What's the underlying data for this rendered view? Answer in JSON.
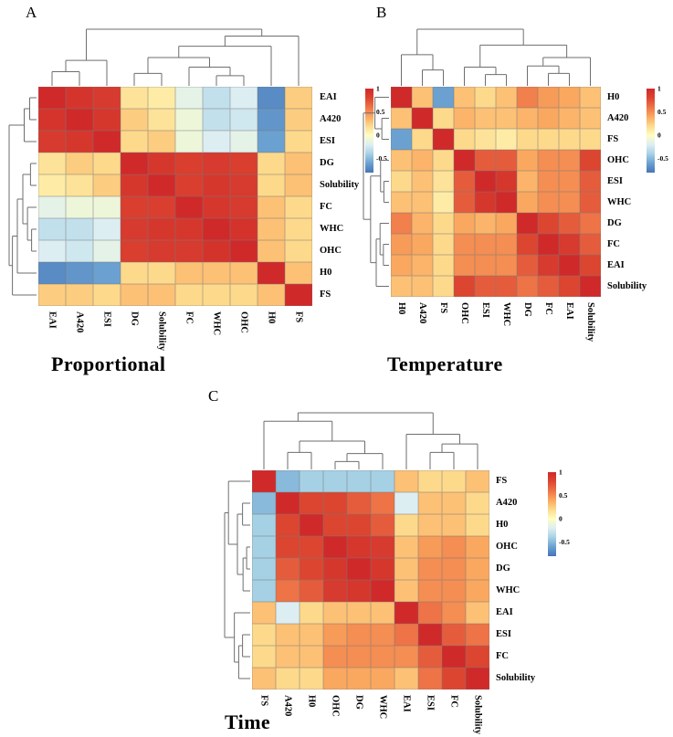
{
  "figure": {
    "type": "clustered-correlation-heatmap-figure",
    "panel_count": 3
  },
  "colormap": {
    "min": -0.8,
    "max": 1,
    "anchors": [
      [
        1.0,
        "#d0292a"
      ],
      [
        0.8,
        "#dc4530"
      ],
      [
        0.6,
        "#ee7347"
      ],
      [
        0.4,
        "#faa85f"
      ],
      [
        0.2,
        "#fdd98b"
      ],
      [
        0.0,
        "#fefec1"
      ],
      [
        -0.2,
        "#ddeef3"
      ],
      [
        -0.4,
        "#a6d1e4"
      ],
      [
        -0.6,
        "#6ba1d1"
      ],
      [
        -0.8,
        "#4674b6"
      ]
    ]
  },
  "colorbar": {
    "ticks": [
      "1",
      "0.5",
      "0",
      "-0.5"
    ],
    "tick_values": [
      1,
      0.5,
      0,
      -0.5
    ]
  },
  "chart_data": [
    {
      "type": "heatmap",
      "id": "a",
      "panel_letter": "A",
      "title": "Proportional",
      "labels": [
        "EAI",
        "A420",
        "ESI",
        "DG",
        "Solubility",
        "FC",
        "WHC",
        "OHC",
        "H0",
        "FS"
      ],
      "matrix": [
        [
          1.0,
          0.92,
          0.88,
          0.15,
          0.1,
          -0.15,
          -0.3,
          -0.2,
          -0.7,
          0.25
        ],
        [
          0.92,
          1.0,
          0.9,
          0.25,
          0.15,
          -0.1,
          -0.3,
          -0.25,
          -0.65,
          0.25
        ],
        [
          0.88,
          0.9,
          1.0,
          0.2,
          0.25,
          -0.1,
          -0.2,
          -0.15,
          -0.6,
          0.2
        ],
        [
          0.15,
          0.25,
          0.2,
          1.0,
          0.9,
          0.85,
          0.88,
          0.85,
          0.2,
          0.3
        ],
        [
          0.1,
          0.15,
          0.25,
          0.9,
          1.0,
          0.85,
          0.9,
          0.88,
          0.2,
          0.3
        ],
        [
          -0.15,
          -0.1,
          -0.1,
          0.85,
          0.85,
          1.0,
          0.9,
          0.88,
          0.3,
          0.2
        ],
        [
          -0.3,
          -0.3,
          -0.2,
          0.88,
          0.9,
          0.9,
          1.0,
          0.93,
          0.3,
          0.2
        ],
        [
          -0.2,
          -0.25,
          -0.15,
          0.85,
          0.88,
          0.88,
          0.93,
          1.0,
          0.3,
          0.2
        ],
        [
          -0.7,
          -0.65,
          -0.6,
          0.2,
          0.2,
          0.3,
          0.3,
          0.3,
          1.0,
          0.3
        ],
        [
          0.25,
          0.25,
          0.2,
          0.3,
          0.3,
          0.2,
          0.2,
          0.2,
          0.3,
          1.0
        ]
      ],
      "tree": {
        "h": 1.0,
        "c": [
          {
            "h": 0.45,
            "c": [
              {
                "h": 0.25,
                "c": [
                  0,
                  1
                ]
              },
              2
            ]
          },
          {
            "h": 0.88,
            "c": [
              {
                "h": 0.7,
                "c": [
                  {
                    "h": 0.5,
                    "c": [
                      {
                        "h": 0.22,
                        "c": [
                          3,
                          4
                        ]
                      },
                      {
                        "h": 0.33,
                        "c": [
                          5,
                          {
                            "h": 0.18,
                            "c": [
                              6,
                              7
                            ]
                          }
                        ]
                      }
                    ]
                  },
                  8
                ]
              },
              9
            ]
          }
        ]
      }
    },
    {
      "type": "heatmap",
      "id": "b",
      "panel_letter": "B",
      "title": "Temperature",
      "labels": [
        "H0",
        "A420",
        "FS",
        "OHC",
        "ESI",
        "WHC",
        "DG",
        "FC",
        "EAI",
        "Solubility"
      ],
      "matrix": [
        [
          1.0,
          0.3,
          -0.6,
          0.3,
          0.2,
          0.3,
          0.55,
          0.45,
          0.4,
          0.3
        ],
        [
          0.3,
          1.0,
          0.2,
          0.35,
          0.3,
          0.3,
          0.35,
          0.4,
          0.35,
          0.3
        ],
        [
          -0.6,
          0.2,
          1.0,
          0.2,
          0.15,
          0.1,
          0.2,
          0.2,
          0.2,
          0.2
        ],
        [
          0.3,
          0.35,
          0.2,
          1.0,
          0.7,
          0.7,
          0.4,
          0.5,
          0.5,
          0.8
        ],
        [
          0.2,
          0.3,
          0.15,
          0.7,
          1.0,
          0.9,
          0.35,
          0.5,
          0.5,
          0.7
        ],
        [
          0.3,
          0.3,
          0.1,
          0.7,
          0.9,
          1.0,
          0.4,
          0.5,
          0.5,
          0.7
        ],
        [
          0.55,
          0.35,
          0.2,
          0.4,
          0.35,
          0.4,
          1.0,
          0.8,
          0.7,
          0.6
        ],
        [
          0.45,
          0.4,
          0.2,
          0.5,
          0.5,
          0.5,
          0.8,
          1.0,
          0.88,
          0.7
        ],
        [
          0.4,
          0.35,
          0.2,
          0.5,
          0.5,
          0.5,
          0.7,
          0.88,
          1.0,
          0.8
        ],
        [
          0.3,
          0.3,
          0.2,
          0.8,
          0.7,
          0.7,
          0.6,
          0.7,
          0.8,
          1.0
        ]
      ],
      "tree": {
        "h": 1.0,
        "c": [
          {
            "h": 0.55,
            "c": [
              0,
              {
                "h": 0.28,
                "c": [
                  1,
                  2
                ]
              }
            ]
          },
          {
            "h": 0.72,
            "c": [
              {
                "h": 0.33,
                "c": [
                  3,
                  {
                    "h": 0.2,
                    "c": [
                      4,
                      5
                    ]
                  }
                ]
              },
              {
                "h": 0.5,
                "c": [
                  {
                    "h": 0.35,
                    "c": [
                      6,
                      {
                        "h": 0.22,
                        "c": [
                          7,
                          8
                        ]
                      }
                    ]
                  },
                  9
                ]
              }
            ]
          }
        ]
      }
    },
    {
      "type": "heatmap",
      "id": "c",
      "panel_letter": "C",
      "title": "Time",
      "labels": [
        "FS",
        "A420",
        "H0",
        "OHC",
        "DG",
        "WHC",
        "EAI",
        "ESI",
        "FC",
        "Solubility"
      ],
      "matrix": [
        [
          1.0,
          -0.5,
          -0.4,
          -0.4,
          -0.4,
          -0.4,
          0.3,
          0.2,
          0.2,
          0.3
        ],
        [
          -0.5,
          1.0,
          0.8,
          0.8,
          0.7,
          0.6,
          -0.2,
          0.3,
          0.3,
          0.2
        ],
        [
          -0.4,
          0.8,
          1.0,
          0.8,
          0.8,
          0.7,
          0.2,
          0.3,
          0.3,
          0.2
        ],
        [
          -0.4,
          0.8,
          0.8,
          1.0,
          0.9,
          0.88,
          0.3,
          0.45,
          0.5,
          0.4
        ],
        [
          -0.4,
          0.7,
          0.8,
          0.9,
          1.0,
          0.9,
          0.3,
          0.5,
          0.5,
          0.4
        ],
        [
          -0.4,
          0.6,
          0.7,
          0.88,
          0.9,
          1.0,
          0.3,
          0.5,
          0.5,
          0.4
        ],
        [
          0.3,
          -0.2,
          0.2,
          0.3,
          0.3,
          0.3,
          1.0,
          0.6,
          0.5,
          0.3
        ],
        [
          0.2,
          0.3,
          0.3,
          0.45,
          0.5,
          0.5,
          0.6,
          1.0,
          0.7,
          0.6
        ],
        [
          0.2,
          0.3,
          0.3,
          0.5,
          0.5,
          0.5,
          0.5,
          0.7,
          1.0,
          0.8
        ],
        [
          0.3,
          0.2,
          0.2,
          0.4,
          0.4,
          0.4,
          0.3,
          0.6,
          0.8,
          1.0
        ]
      ],
      "tree": {
        "h": 1.0,
        "c": [
          {
            "h": 0.85,
            "c": [
              0,
              {
                "h": 0.5,
                "c": [
                  {
                    "h": 0.3,
                    "c": [
                      1,
                      2
                    ]
                  },
                  {
                    "h": 0.28,
                    "c": [
                      {
                        "h": 0.14,
                        "c": [
                          3,
                          4
                        ]
                      },
                      5
                    ]
                  }
                ]
              }
            ]
          },
          {
            "h": 0.62,
            "c": [
              6,
              {
                "h": 0.45,
                "c": [
                  {
                    "h": 0.3,
                    "c": [
                      7,
                      8
                    ]
                  },
                  9
                ]
              }
            ]
          }
        ]
      }
    }
  ]
}
